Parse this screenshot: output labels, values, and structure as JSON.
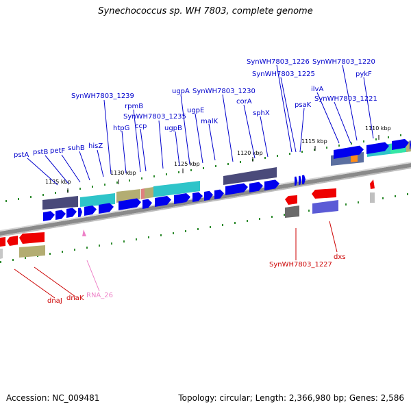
{
  "title": "Synechococcus sp. WH 7803, complete genome",
  "footer": {
    "accession": "Accession: NC_009481",
    "summary": "Topology: circular; Length: 2,366,980 bp; Genes: 2,586"
  },
  "colors": {
    "forward_gene": "#0000ee",
    "reverse_gene": "#ee0000",
    "forward_label": "#0000cc",
    "reverse_label": "#cc0000",
    "rna": "#ee82c8",
    "backbone": "#808080",
    "tick": "#008000"
  },
  "scale_labels": [
    "1135 kbp",
    "1130 kbp",
    "1125 kbp",
    "1120 kbp",
    "1115 kbp",
    "1110 kbp"
  ],
  "forward_labels": [
    "pstA",
    "pstB",
    "petF",
    "suhB",
    "hisZ",
    "SynWH7803_1239",
    "htpG",
    "rpmB",
    "SynWH7803_1235",
    "ccp",
    "ugpB",
    "ugpA",
    "ugpE",
    "SynWH7803_1230",
    "malK",
    "corA",
    "sphX",
    "SynWH7803_1226",
    "SynWH7803_1225",
    "psaK",
    "ilvA",
    "SynWH7803_1220",
    "SynWH7803_1221",
    "pykF"
  ],
  "reverse_labels": [
    "dnaJ",
    "dnaK",
    "SynWH7803_1227",
    "dxs"
  ],
  "rna_labels": [
    "RNA_26"
  ]
}
